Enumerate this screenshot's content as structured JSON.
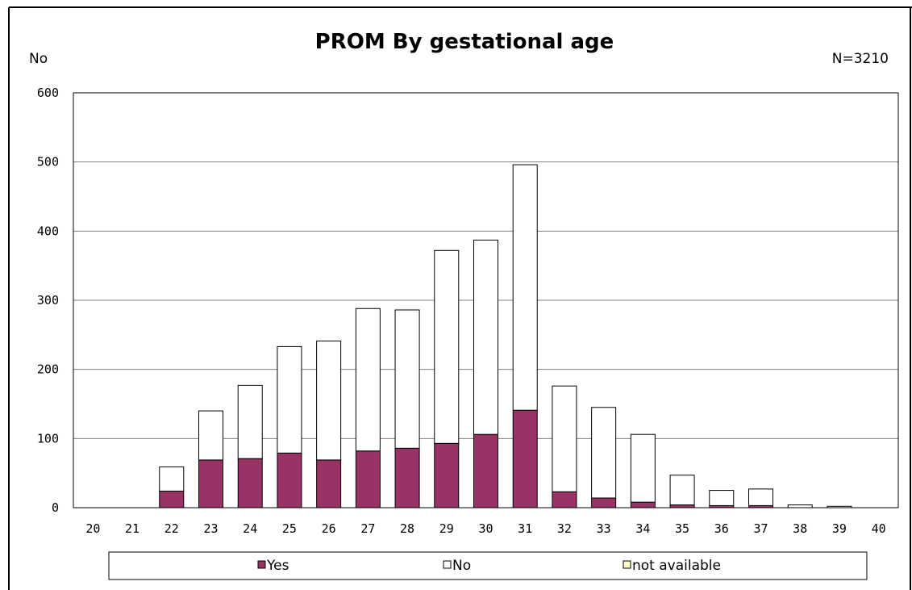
{
  "chart_data": {
    "type": "bar",
    "stacked": true,
    "title": "PROM By gestational age",
    "ylabel": "No",
    "annotation": "N=3210",
    "ylim": [
      0,
      600
    ],
    "yticks": [
      0,
      100,
      200,
      300,
      400,
      500,
      600
    ],
    "grid": true,
    "legend_position": "bottom",
    "categories": [
      "20",
      "21",
      "22",
      "23",
      "24",
      "25",
      "26",
      "27",
      "28",
      "29",
      "30",
      "31",
      "32",
      "33",
      "34",
      "35",
      "36",
      "37",
      "38",
      "39",
      "40"
    ],
    "series": [
      {
        "name": "Yes",
        "color": "#993366",
        "values": [
          0,
          0,
          24,
          69,
          71,
          79,
          69,
          82,
          86,
          93,
          106,
          141,
          23,
          14,
          8,
          4,
          3,
          3,
          0,
          0,
          0
        ]
      },
      {
        "name": "No",
        "color": "#ffffff",
        "values": [
          0,
          0,
          35,
          71,
          106,
          154,
          172,
          206,
          200,
          279,
          281,
          355,
          153,
          131,
          98,
          43,
          22,
          24,
          4,
          2,
          0
        ]
      },
      {
        "name": "not available",
        "color": "#ffffcc",
        "values": [
          0,
          0,
          0,
          0,
          0,
          0,
          0,
          0,
          0,
          0,
          0,
          0,
          0,
          0,
          0,
          0,
          0,
          0,
          0,
          0,
          0
        ]
      }
    ]
  }
}
